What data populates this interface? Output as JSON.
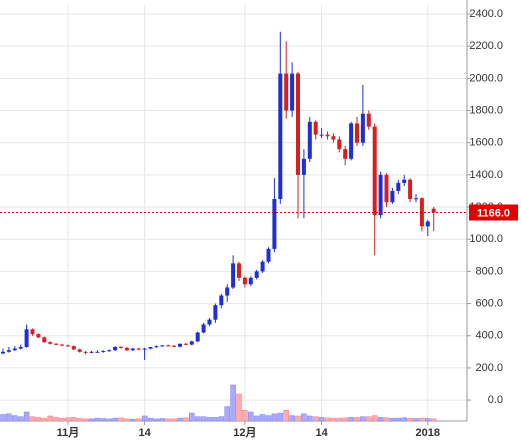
{
  "chart_data": {
    "type": "candlestick",
    "categories": [
      null,
      null,
      null,
      null,
      null,
      null,
      null,
      null,
      null,
      null,
      null,
      "11月",
      null,
      null,
      null,
      null,
      null,
      null,
      null,
      null,
      null,
      null,
      null,
      null,
      "14",
      null,
      null,
      null,
      null,
      null,
      null,
      null,
      null,
      null,
      null,
      null,
      null,
      null,
      null,
      null,
      null,
      "12月",
      null,
      null,
      null,
      null,
      null,
      null,
      null,
      null,
      null,
      null,
      null,
      null,
      "14",
      null,
      null,
      null,
      null,
      null,
      null,
      null,
      null,
      null,
      null,
      null,
      null,
      null,
      null,
      null,
      null,
      null,
      "2018",
      null
    ],
    "open": [
      290,
      300,
      310,
      320,
      330,
      440,
      410,
      390,
      360,
      350,
      345,
      340,
      335,
      315,
      300,
      295,
      300,
      300,
      305,
      310,
      330,
      325,
      310,
      320,
      315,
      320,
      330,
      335,
      340,
      338,
      332,
      350,
      345,
      365,
      420,
      470,
      500,
      590,
      650,
      700,
      850,
      760,
      720,
      760,
      800,
      860,
      940,
      1250,
      2030,
      1800,
      2030,
      1400,
      1500,
      1730,
      1650,
      1650,
      1640,
      1620,
      1560,
      1500,
      1720,
      1600,
      1780,
      1700,
      1150,
      1400,
      1230,
      1300,
      1350,
      1370,
      1250,
      1255,
      1080,
      1190
    ],
    "high": [
      320,
      330,
      335,
      345,
      470,
      445,
      415,
      395,
      365,
      355,
      350,
      345,
      340,
      320,
      305,
      305,
      310,
      310,
      315,
      335,
      335,
      330,
      325,
      325,
      325,
      330,
      340,
      340,
      345,
      342,
      352,
      355,
      370,
      425,
      480,
      510,
      600,
      660,
      720,
      900,
      860,
      770,
      770,
      810,
      870,
      950,
      1380,
      2290,
      2230,
      2100,
      2040,
      1560,
      1760,
      1740,
      1690,
      1670,
      1660,
      1640,
      1580,
      1730,
      1760,
      1960,
      1800,
      1720,
      1420,
      1410,
      1320,
      1370,
      1400,
      1380,
      1280,
      1260,
      1120,
      1200
    ],
    "low": [
      285,
      295,
      305,
      315,
      325,
      400,
      385,
      355,
      345,
      340,
      335,
      330,
      310,
      295,
      285,
      290,
      295,
      295,
      300,
      305,
      320,
      305,
      305,
      310,
      250,
      315,
      325,
      330,
      335,
      330,
      328,
      340,
      340,
      360,
      415,
      460,
      480,
      570,
      610,
      690,
      740,
      700,
      710,
      750,
      790,
      850,
      920,
      1220,
      1750,
      1760,
      1130,
      1130,
      1480,
      1620,
      1630,
      1620,
      1600,
      1540,
      1460,
      1490,
      1580,
      1580,
      1680,
      900,
      1130,
      1200,
      1220,
      1280,
      1330,
      1230,
      1230,
      1050,
      1020,
      1050
    ],
    "close": [
      300,
      310,
      320,
      330,
      440,
      410,
      390,
      360,
      350,
      345,
      340,
      335,
      315,
      300,
      295,
      300,
      300,
      305,
      310,
      330,
      325,
      310,
      320,
      315,
      320,
      330,
      335,
      340,
      338,
      332,
      350,
      345,
      365,
      420,
      470,
      500,
      590,
      650,
      700,
      850,
      760,
      720,
      760,
      800,
      860,
      940,
      1250,
      2030,
      1800,
      2030,
      1400,
      1500,
      1730,
      1650,
      1650,
      1640,
      1620,
      1560,
      1500,
      1720,
      1600,
      1780,
      1700,
      1150,
      1400,
      1230,
      1300,
      1350,
      1370,
      1250,
      1255,
      1080,
      1110,
      1166
    ],
    "volume": [
      18,
      20,
      15,
      12,
      25,
      12,
      10,
      8,
      14,
      10,
      8,
      9,
      10,
      7,
      6,
      6,
      8,
      7,
      6,
      8,
      9,
      6,
      5,
      6,
      14,
      8,
      6,
      7,
      6,
      6,
      8,
      9,
      22,
      12,
      12,
      10,
      10,
      12,
      40,
      100,
      75,
      30,
      25,
      14,
      18,
      15,
      20,
      22,
      30,
      15,
      14,
      20,
      14,
      12,
      10,
      9,
      8,
      8,
      9,
      10,
      10,
      12,
      12,
      15,
      10,
      9,
      8,
      8,
      9,
      8,
      7,
      8,
      7,
      6
    ],
    "up_color": "#1f2fd6",
    "down_color": "#d61f1f",
    "up_volume_color": "#a9a9ff",
    "down_volume_color": "#ffa9b0",
    "ylim": [
      -130,
      2456
    ],
    "yticks": [
      {
        "value": 0,
        "label": "0.0"
      },
      {
        "value": 200,
        "label": "200.0"
      },
      {
        "value": 400,
        "label": "400.0"
      },
      {
        "value": 600,
        "label": "600.0"
      },
      {
        "value": 800,
        "label": "800.0"
      },
      {
        "value": 1000,
        "label": "1000.0"
      },
      {
        "value": 1200,
        "label": "1200.0"
      },
      {
        "value": 1400,
        "label": "1400.0"
      },
      {
        "value": 1600,
        "label": "1600.0"
      },
      {
        "value": 1800,
        "label": "1800.0"
      },
      {
        "value": 2000,
        "label": "2000.0"
      },
      {
        "value": 2200,
        "label": "2200.0"
      },
      {
        "value": 2400,
        "label": "2400.0"
      }
    ],
    "last_price": {
      "value": 1166,
      "label": "1166.0"
    },
    "last_price_color": "#e00000",
    "grid": true
  }
}
